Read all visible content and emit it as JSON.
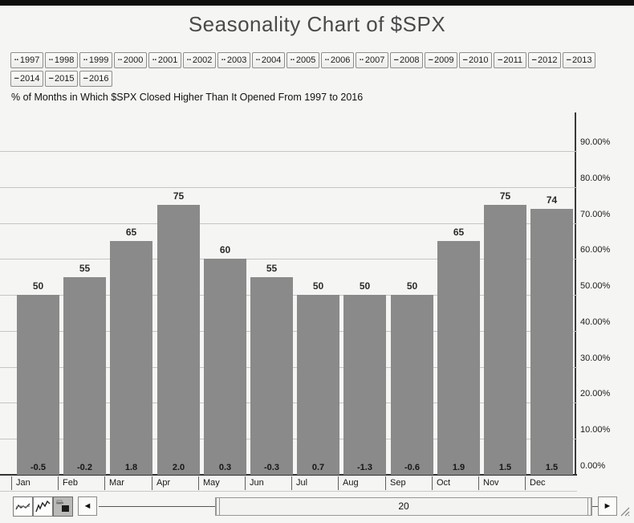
{
  "page": {
    "title": "Seasonality Chart of $SPX"
  },
  "subtitle": "% of Months in Which $SPX Closed Higher Than It Opened From 1997 to 2016",
  "years": [
    {
      "label": "1997",
      "marker": "··",
      "marker_type": "dotted-line"
    },
    {
      "label": "1998",
      "marker": "··",
      "marker_type": "dotted-line"
    },
    {
      "label": "1999",
      "marker": "··",
      "marker_type": "dotted-line"
    },
    {
      "label": "2000",
      "marker": "··",
      "marker_type": "dotted-line"
    },
    {
      "label": "2001",
      "marker": "··",
      "marker_type": "dotted-line"
    },
    {
      "label": "2002",
      "marker": "··",
      "marker_type": "dotted-line"
    },
    {
      "label": "2003",
      "marker": "··",
      "marker_type": "dotted-line"
    },
    {
      "label": "2004",
      "marker": "··",
      "marker_type": "dotted-line"
    },
    {
      "label": "2005",
      "marker": "··",
      "marker_type": "dotted-line"
    },
    {
      "label": "2006",
      "marker": "··",
      "marker_type": "dotted-line"
    },
    {
      "label": "2007",
      "marker": "··",
      "marker_type": "dotted-line"
    },
    {
      "label": "2008",
      "marker": "−",
      "marker_type": "dash-line"
    },
    {
      "label": "2009",
      "marker": "−",
      "marker_type": "dash-line"
    },
    {
      "label": "2010",
      "marker": "−",
      "marker_type": "dash-line"
    },
    {
      "label": "2011",
      "marker": "−",
      "marker_type": "dash-line"
    },
    {
      "label": "2012",
      "marker": "−",
      "marker_type": "dash-line"
    },
    {
      "label": "2013",
      "marker": "−",
      "marker_type": "dash-line"
    },
    {
      "label": "2014",
      "marker": "−",
      "marker_type": "dash-line"
    },
    {
      "label": "2015",
      "marker": "−",
      "marker_type": "dash-line"
    },
    {
      "label": "2016",
      "marker": "−",
      "marker_type": "dash-line"
    }
  ],
  "chart_data": {
    "type": "bar",
    "title": "% of Months in Which $SPX Closed Higher Than It Opened From 1997 to 2016",
    "categories": [
      "Jan",
      "Feb",
      "Mar",
      "Apr",
      "May",
      "Jun",
      "Jul",
      "Aug",
      "Sep",
      "Oct",
      "Nov",
      "Dec"
    ],
    "values": [
      50,
      55,
      65,
      75,
      60,
      55,
      50,
      50,
      50,
      65,
      75,
      74
    ],
    "change_labels": [
      "-0.5",
      "-0.2",
      "1.8",
      "2.0",
      "0.3",
      "-0.3",
      "0.7",
      "-1.3",
      "-0.6",
      "1.9",
      "1.5",
      "1.5"
    ],
    "yticks": [
      "0.00%",
      "10.00%",
      "20.00%",
      "30.00%",
      "40.00%",
      "50.00%",
      "60.00%",
      "70.00%",
      "80.00%",
      "90.00%"
    ],
    "ylim": [
      0,
      100
    ],
    "ylabel": "",
    "xlabel": "",
    "grid": "horizontal",
    "axis_side": "right",
    "bar_color": "#8a8a8a"
  },
  "toolbar": {
    "chart_type_icons": [
      "area-chart",
      "line-chart",
      "bar-chart"
    ],
    "selected_icon": "bar-chart",
    "left_arrow": "◄",
    "right_arrow": "►",
    "slider_value": "20"
  }
}
